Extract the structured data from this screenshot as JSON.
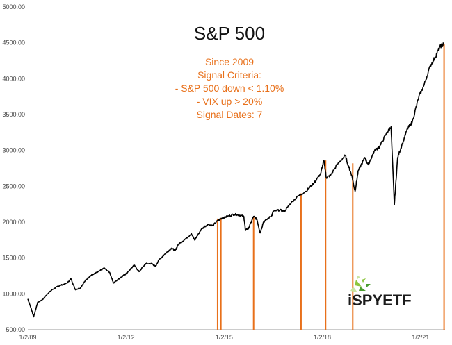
{
  "chart_data": {
    "type": "line",
    "title": "S&P 500",
    "annotations": [
      "Since 2009",
      "Signal Criteria:",
      "- S&P 500 down < 1.10%",
      "- VIX up > 20%",
      "Signal Dates: 7"
    ],
    "xlabel": "",
    "ylabel": "",
    "x_ticks": [
      "1/2/09",
      "1/2/12",
      "1/2/15",
      "1/2/18",
      "1/2/21"
    ],
    "y_ticks": [
      "500.00",
      "1000.00",
      "1500.00",
      "2000.00",
      "2500.00",
      "3000.00",
      "3500.00",
      "4000.00",
      "4500.00",
      "5000.00"
    ],
    "ylim": [
      500,
      5000
    ],
    "xlim": [
      2009.0,
      2021.75
    ],
    "grid": false,
    "series": [
      {
        "color": "#000000",
        "x": [
          2009.0,
          2009.1,
          2009.18,
          2009.3,
          2009.45,
          2009.6,
          2009.75,
          2009.9,
          2010.0,
          2010.2,
          2010.32,
          2010.45,
          2010.6,
          2010.75,
          2010.9,
          2011.0,
          2011.2,
          2011.33,
          2011.5,
          2011.62,
          2011.75,
          2011.9,
          2012.0,
          2012.25,
          2012.4,
          2012.6,
          2012.8,
          2012.9,
          2013.0,
          2013.2,
          2013.4,
          2013.5,
          2013.6,
          2013.8,
          2014.0,
          2014.1,
          2014.3,
          2014.5,
          2014.65,
          2014.8,
          2014.95,
          2015.1,
          2015.3,
          2015.45,
          2015.6,
          2015.65,
          2015.75,
          2015.9,
          2016.0,
          2016.1,
          2016.2,
          2016.45,
          2016.5,
          2016.7,
          2016.85,
          2017.0,
          2017.25,
          2017.5,
          2017.75,
          2017.95,
          2018.05,
          2018.12,
          2018.25,
          2018.45,
          2018.7,
          2018.8,
          2018.9,
          2019.0,
          2019.1,
          2019.3,
          2019.4,
          2019.6,
          2019.75,
          2019.95,
          2020.1,
          2020.2,
          2020.3,
          2020.45,
          2020.6,
          2020.75,
          2020.95,
          2021.1,
          2021.3,
          2021.45,
          2021.6,
          2021.7
        ],
        "values": [
          930,
          800,
          680,
          880,
          920,
          1000,
          1060,
          1100,
          1120,
          1150,
          1210,
          1060,
          1080,
          1180,
          1250,
          1270,
          1320,
          1360,
          1300,
          1150,
          1200,
          1250,
          1280,
          1400,
          1310,
          1420,
          1420,
          1380,
          1470,
          1560,
          1640,
          1600,
          1690,
          1760,
          1840,
          1750,
          1900,
          1970,
          1950,
          2020,
          2060,
          2080,
          2110,
          2100,
          2080,
          1890,
          1920,
          2080,
          2040,
          1850,
          2000,
          2090,
          2150,
          2170,
          2150,
          2250,
          2360,
          2430,
          2550,
          2680,
          2860,
          2620,
          2650,
          2800,
          2930,
          2780,
          2650,
          2430,
          2720,
          2900,
          2800,
          3000,
          3050,
          3230,
          3330,
          2240,
          2900,
          3100,
          3300,
          3400,
          3750,
          3900,
          4180,
          4300,
          4450,
          4480
        ]
      },
      {
        "color": "#E8701A",
        "type": "signal-lines",
        "x": [
          2014.8,
          2014.9,
          2015.9,
          2017.35,
          2018.1,
          2018.93,
          2021.72
        ],
        "values": [
          2050,
          2060,
          2070,
          2400,
          2860,
          2820,
          4480
        ]
      }
    ],
    "colors": {
      "price": "#000000",
      "signal": "#E8701A",
      "annotation": "#E8701A"
    }
  },
  "logo": {
    "text": "iSPYETF",
    "colors": [
      "#1a1a1a",
      "#8dc63f",
      "#4a9d2f"
    ]
  }
}
